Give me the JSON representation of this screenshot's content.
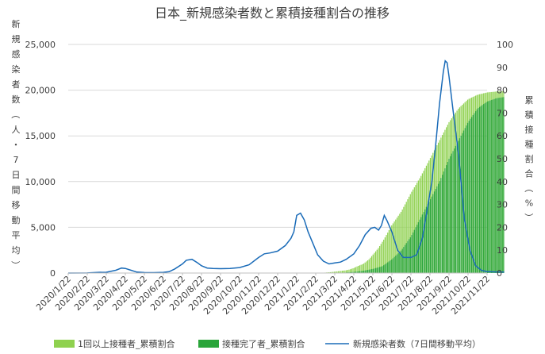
{
  "chart_data": {
    "type": "combo-bar-line",
    "title": "日本_新規感染者数と累積接種割合の推移",
    "y_left_label": "新規感染者数（人・7日間移動平均）",
    "y_right_label": "累積接種割合（%）",
    "y_left_ticks": [
      "0",
      "5,000",
      "10,000",
      "15,000",
      "20,000",
      "25,000"
    ],
    "y_left_range": [
      0,
      25000
    ],
    "y_right_ticks": [
      "0",
      "10",
      "20",
      "30",
      "40",
      "50",
      "60",
      "70",
      "80",
      "90",
      "100"
    ],
    "y_right_range": [
      0,
      100
    ],
    "x_ticks": [
      "2020/1/22",
      "2020/2/22",
      "2020/3/22",
      "2020/4/22",
      "2020/5/22",
      "2020/6/22",
      "2020/7/22",
      "2020/8/22",
      "2020/9/22",
      "2020/10/22",
      "2020/11/22",
      "2020/12/22",
      "2021/1/22",
      "2021/2/22",
      "2021/3/22",
      "2021/4/22",
      "2021/5/22",
      "2021/6/22",
      "2021/7/22",
      "2021/8/22",
      "2021/9/22",
      "2021/10/22",
      "2021/11/22"
    ],
    "grid": true,
    "legend_position": "bottom",
    "series": [
      {
        "name": "1回以上接種者_累積割合",
        "kind": "bar",
        "axis": "right",
        "color": "#8fd14f",
        "points": [
          [
            13.0,
            0
          ],
          [
            13.2,
            0.1
          ],
          [
            13.5,
            0.2
          ],
          [
            13.8,
            0.4
          ],
          [
            14.0,
            0.6
          ],
          [
            14.3,
            0.9
          ],
          [
            14.6,
            1.2
          ],
          [
            14.8,
            1.6
          ],
          [
            15.0,
            2.2
          ],
          [
            15.2,
            3.0
          ],
          [
            15.5,
            4.0
          ],
          [
            15.8,
            6.0
          ],
          [
            16.0,
            8.0
          ],
          [
            16.3,
            11.0
          ],
          [
            16.6,
            15.0
          ],
          [
            17.0,
            21.0
          ],
          [
            17.5,
            27.0
          ],
          [
            18.0,
            35.0
          ],
          [
            18.5,
            42.0
          ],
          [
            19.0,
            50.0
          ],
          [
            19.5,
            58.0
          ],
          [
            20.0,
            66.0
          ],
          [
            20.5,
            72.0
          ],
          [
            21.0,
            76.0
          ],
          [
            21.5,
            78.0
          ],
          [
            22.0,
            79.0
          ],
          [
            22.5,
            79.4
          ],
          [
            22.9,
            79.6
          ]
        ]
      },
      {
        "name": "接種完了者_累積割合",
        "kind": "bar",
        "axis": "right",
        "color": "#2aa53a",
        "points": [
          [
            13.0,
            0
          ],
          [
            13.5,
            0
          ],
          [
            14.0,
            0.1
          ],
          [
            14.5,
            0.2
          ],
          [
            15.0,
            0.5
          ],
          [
            15.5,
            1.0
          ],
          [
            16.0,
            1.8
          ],
          [
            16.5,
            3.0
          ],
          [
            17.0,
            6.0
          ],
          [
            17.5,
            10.0
          ],
          [
            18.0,
            16.0
          ],
          [
            18.5,
            24.0
          ],
          [
            19.0,
            32.0
          ],
          [
            19.5,
            40.0
          ],
          [
            20.0,
            50.0
          ],
          [
            20.5,
            58.0
          ],
          [
            21.0,
            66.0
          ],
          [
            21.5,
            72.0
          ],
          [
            22.0,
            75.0
          ],
          [
            22.5,
            76.5
          ],
          [
            22.9,
            77.0
          ]
        ]
      },
      {
        "name": "新規感染者数（7日間移動平均）",
        "kind": "line",
        "axis": "left",
        "color": "#1a6bb8",
        "points": [
          [
            0,
            0
          ],
          [
            1,
            10
          ],
          [
            1.6,
            80
          ],
          [
            2,
            90
          ],
          [
            2.5,
            300
          ],
          [
            2.8,
            550
          ],
          [
            3,
            500
          ],
          [
            3.3,
            300
          ],
          [
            3.6,
            100
          ],
          [
            4,
            50
          ],
          [
            4.5,
            40
          ],
          [
            5,
            80
          ],
          [
            5.3,
            150
          ],
          [
            5.6,
            450
          ],
          [
            6,
            1000
          ],
          [
            6.2,
            1400
          ],
          [
            6.5,
            1500
          ],
          [
            6.8,
            1100
          ],
          [
            7,
            800
          ],
          [
            7.3,
            550
          ],
          [
            7.6,
            500
          ],
          [
            8,
            480
          ],
          [
            8.5,
            500
          ],
          [
            9,
            600
          ],
          [
            9.5,
            900
          ],
          [
            10,
            1700
          ],
          [
            10.3,
            2100
          ],
          [
            10.6,
            2200
          ],
          [
            11,
            2400
          ],
          [
            11.4,
            3000
          ],
          [
            11.7,
            3800
          ],
          [
            11.85,
            4500
          ],
          [
            12,
            6300
          ],
          [
            12.2,
            6550
          ],
          [
            12.4,
            5800
          ],
          [
            12.6,
            4500
          ],
          [
            12.9,
            3000
          ],
          [
            13.1,
            2000
          ],
          [
            13.4,
            1300
          ],
          [
            13.7,
            1000
          ],
          [
            14,
            1100
          ],
          [
            14.3,
            1200
          ],
          [
            14.6,
            1500
          ],
          [
            15,
            2100
          ],
          [
            15.3,
            3000
          ],
          [
            15.6,
            4200
          ],
          [
            15.9,
            4900
          ],
          [
            16.1,
            5000
          ],
          [
            16.3,
            4700
          ],
          [
            16.45,
            5200
          ],
          [
            16.6,
            6300
          ],
          [
            16.75,
            5700
          ],
          [
            17,
            4500
          ],
          [
            17.3,
            2500
          ],
          [
            17.6,
            1700
          ],
          [
            18,
            1700
          ],
          [
            18.3,
            2000
          ],
          [
            18.6,
            3800
          ],
          [
            18.9,
            7500
          ],
          [
            19.1,
            10000
          ],
          [
            19.3,
            14000
          ],
          [
            19.5,
            18500
          ],
          [
            19.7,
            22000
          ],
          [
            19.8,
            23200
          ],
          [
            19.9,
            23000
          ],
          [
            20,
            21500
          ],
          [
            20.2,
            18000
          ],
          [
            20.5,
            13000
          ],
          [
            20.8,
            6000
          ],
          [
            21.1,
            2500
          ],
          [
            21.4,
            800
          ],
          [
            21.7,
            300
          ],
          [
            22,
            150
          ],
          [
            22.5,
            120
          ],
          [
            22.9,
            100
          ]
        ]
      }
    ]
  }
}
